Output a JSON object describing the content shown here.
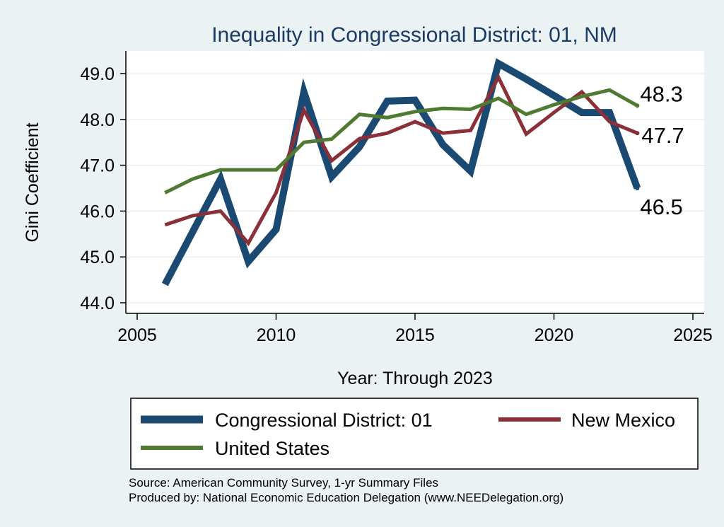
{
  "chart_data": {
    "type": "line",
    "title": "Inequality in Congressional District:  01, NM",
    "xlabel": "Year: Through 2023",
    "ylabel": "Gini Coefficient",
    "xlim": [
      2005,
      2025
    ],
    "ylim": [
      44.0,
      49.0
    ],
    "x_ticks": [
      "2005",
      "2010",
      "2015",
      "2020",
      "2025"
    ],
    "y_ticks": [
      "44.0",
      "45.0",
      "46.0",
      "47.0",
      "48.0",
      "49.0"
    ],
    "grid": true,
    "x": [
      2006,
      2007,
      2008,
      2009,
      2010,
      2011,
      2012,
      2013,
      2014,
      2015,
      2016,
      2017,
      2018,
      2019,
      2020,
      2021,
      2022,
      2023
    ],
    "series": [
      {
        "name": "Congressional District:  01",
        "color": "#1a4a72",
        "values": [
          44.4,
          45.55,
          46.7,
          44.9,
          45.6,
          48.6,
          46.75,
          47.4,
          48.4,
          48.42,
          47.45,
          46.87,
          49.22,
          48.88,
          48.52,
          48.15,
          48.15,
          46.5
        ],
        "end_label": "46.5"
      },
      {
        "name": "New Mexico",
        "color": "#8b3039",
        "values": [
          45.7,
          45.9,
          46.0,
          45.3,
          46.4,
          48.2,
          47.1,
          47.58,
          47.7,
          47.95,
          47.7,
          47.76,
          48.92,
          47.68,
          48.15,
          48.6,
          47.95,
          47.7
        ],
        "end_label": "47.7"
      },
      {
        "name": "United States",
        "color": "#4e7a31",
        "values": [
          46.4,
          46.7,
          46.9,
          46.9,
          46.9,
          47.5,
          47.57,
          48.11,
          48.04,
          48.17,
          48.24,
          48.22,
          48.46,
          48.11,
          48.32,
          48.5,
          48.64,
          48.3
        ],
        "end_label": "48.3"
      }
    ],
    "legend": [
      "Congressional District:  01",
      "New Mexico",
      "United States"
    ],
    "source_lines": [
      "Source: American Community Survey, 1-yr Summary Files",
      "Produced by: National Economic Education Delegation (www.NEEDelegation.org)"
    ]
  }
}
